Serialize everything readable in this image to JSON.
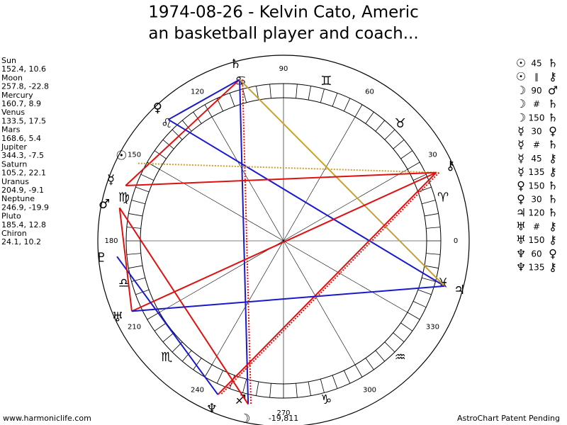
{
  "header": {
    "title_lines": [
      "1974-08-26 - Kelvin Cato, Americ",
      "an basketball player and coach..."
    ]
  },
  "planets": [
    {
      "name": "Sun",
      "info": "152.4, 10.6",
      "longitude": 152.4,
      "glyph": "☉"
    },
    {
      "name": "Moon",
      "info": "257.8, -22.8",
      "longitude": 257.8,
      "glyph": "☽"
    },
    {
      "name": "Mercury",
      "info": "160.7, 8.9",
      "longitude": 160.7,
      "glyph": "☿"
    },
    {
      "name": "Venus",
      "info": "133.5, 17.5",
      "longitude": 133.5,
      "glyph": "♀"
    },
    {
      "name": "Mars",
      "info": "168.6, 5.4",
      "longitude": 168.6,
      "glyph": "♂"
    },
    {
      "name": "Jupiter",
      "info": "344.3, -7.5",
      "longitude": 344.3,
      "glyph": "♃"
    },
    {
      "name": "Saturn",
      "info": "105.2, 22.1",
      "longitude": 105.2,
      "glyph": "♄"
    },
    {
      "name": "Uranus",
      "info": "204.9, -9.1",
      "longitude": 204.9,
      "glyph": "♅"
    },
    {
      "name": "Neptune",
      "info": "246.9, -19.9",
      "longitude": 246.9,
      "glyph": "♆"
    },
    {
      "name": "Pluto",
      "info": "185.4, 12.8",
      "longitude": 185.4,
      "glyph": "♇"
    },
    {
      "name": "Chiron",
      "info": "24.1, 10.2",
      "longitude": 24.1,
      "glyph": "⚷"
    }
  ],
  "aspects": [
    {
      "a": "☉",
      "label": "45",
      "b": "♄"
    },
    {
      "a": "☉",
      "label": "∥",
      "b": "⚷"
    },
    {
      "a": "☽",
      "label": "90",
      "b": "♂"
    },
    {
      "a": "☽",
      "label": "#",
      "b": "♄"
    },
    {
      "a": "☽",
      "label": "150",
      "b": "♄"
    },
    {
      "a": "☿",
      "label": "30",
      "b": "♀"
    },
    {
      "a": "☿",
      "label": "#",
      "b": "♄"
    },
    {
      "a": "☿",
      "label": "45",
      "b": "⚷"
    },
    {
      "a": "☿",
      "label": "135",
      "b": "⚷"
    },
    {
      "a": "♀",
      "label": "150",
      "b": "♄"
    },
    {
      "a": "♀",
      "label": "30",
      "b": "♄"
    },
    {
      "a": "♃",
      "label": "120",
      "b": "♄"
    },
    {
      "a": "♅",
      "label": "#",
      "b": "⚷"
    },
    {
      "a": "♅",
      "label": "150",
      "b": "⚷"
    },
    {
      "a": "♆",
      "label": "60",
      "b": "♀"
    },
    {
      "a": "♆",
      "label": "135",
      "b": "⚷"
    }
  ],
  "aspect_lines": [
    {
      "from": "Saturn",
      "to": "Moon",
      "color": "#1a1acc",
      "dashed": false
    },
    {
      "from": "Saturn",
      "to": "Moon",
      "color": "#e01010",
      "dashed": true
    },
    {
      "from": "Saturn",
      "to": "Mercury",
      "color": "#e01010",
      "dashed": false
    },
    {
      "from": "Saturn",
      "to": "Venus",
      "color": "#1a1acc",
      "dashed": false
    },
    {
      "from": "Venus",
      "to": "Jupiter",
      "color": "#1a1acc",
      "dashed": false
    },
    {
      "from": "Sun",
      "to": "Chiron",
      "color": "#c8a030",
      "dashed": true
    },
    {
      "from": "Saturn",
      "to": "Jupiter",
      "color": "#c8a030",
      "dashed": false
    },
    {
      "from": "Mercury",
      "to": "Chiron",
      "color": "#e01010",
      "dashed": false
    },
    {
      "from": "Mars",
      "to": "Moon",
      "color": "#e01010",
      "dashed": false
    },
    {
      "from": "Uranus",
      "to": "Chiron",
      "color": "#e01010",
      "dashed": false
    },
    {
      "from": "Chiron",
      "to": "Neptune",
      "color": "#e01010",
      "dashed": false
    },
    {
      "from": "Chiron",
      "to": "Neptune",
      "color": "#e01010",
      "dashed": true
    },
    {
      "from": "Neptune",
      "to": "Pluto",
      "color": "#1a1acc",
      "dashed": false
    },
    {
      "from": "Uranus",
      "to": "Mars",
      "color": "#e01010",
      "dashed": false
    },
    {
      "from": "Uranus",
      "to": "Jupiter",
      "color": "#1a1acc",
      "dashed": false
    }
  ],
  "zodiac": [
    "♈",
    "♉",
    "♊",
    "♋",
    "♌",
    "♍",
    "♎",
    "♏",
    "♐",
    "♑",
    "♒",
    "♓"
  ],
  "degree_labels": [
    0,
    30,
    60,
    90,
    120,
    150,
    180,
    210,
    240,
    270,
    300,
    330
  ],
  "footer": {
    "left": "www.harmoniclife.com",
    "center": "-19,811",
    "right": "AstroChart Patent Pending"
  }
}
